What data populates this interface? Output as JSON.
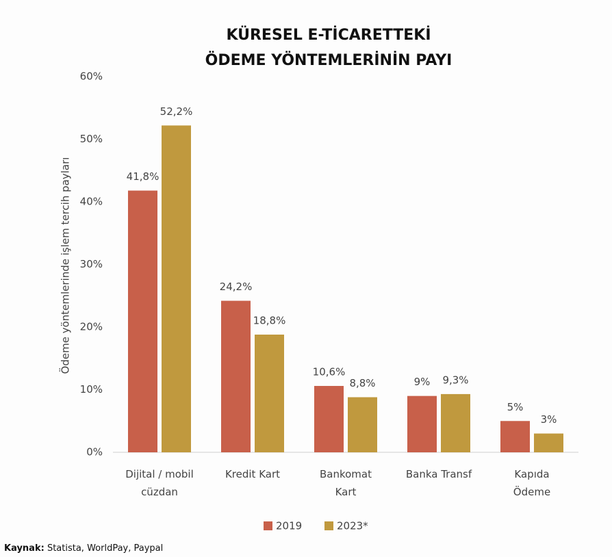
{
  "chart_data": {
    "type": "bar",
    "title": [
      "KÜRESEL E-TİCARETTEKİ",
      "ÖDEME YÖNTEMLERİNİN PAYI"
    ],
    "y_axis_label": "Ödeme yöntemlerinde işlem tercih payları",
    "categories": [
      [
        "Dijital / mobil",
        "cüzdan"
      ],
      [
        "Kredit Kart"
      ],
      [
        "Bankomat",
        "Kart"
      ],
      [
        "Banka Transf"
      ],
      [
        "Kapıda",
        "Ödeme"
      ]
    ],
    "series": [
      {
        "name": "2019",
        "color": "#c8604a",
        "values": [
          41.8,
          24.2,
          10.6,
          9,
          5
        ],
        "value_labels": [
          "41,8%",
          "24,2%",
          "10,6%",
          "9%",
          "5%"
        ]
      },
      {
        "name": "2023*",
        "color": "#c0993e",
        "values": [
          52.2,
          18.8,
          8.8,
          9.3,
          3
        ],
        "value_labels": [
          "52,2%",
          "18,8%",
          "8,8%",
          "9,3%",
          "3%"
        ]
      }
    ],
    "ylim": [
      0,
      60
    ],
    "yticks": [
      {
        "value": 0,
        "label": "0%"
      },
      {
        "value": 10,
        "label": "10%"
      },
      {
        "value": 20,
        "label": "20%"
      },
      {
        "value": 30,
        "label": "30%"
      },
      {
        "value": 40,
        "label": "40%"
      },
      {
        "value": 50,
        "label": "50%"
      },
      {
        "value": 60,
        "label": "60%"
      }
    ],
    "grid": false,
    "legend": "bottom",
    "source": {
      "label": "Kaynak:",
      "text": "Statista, WorldPay, Paypal"
    }
  }
}
